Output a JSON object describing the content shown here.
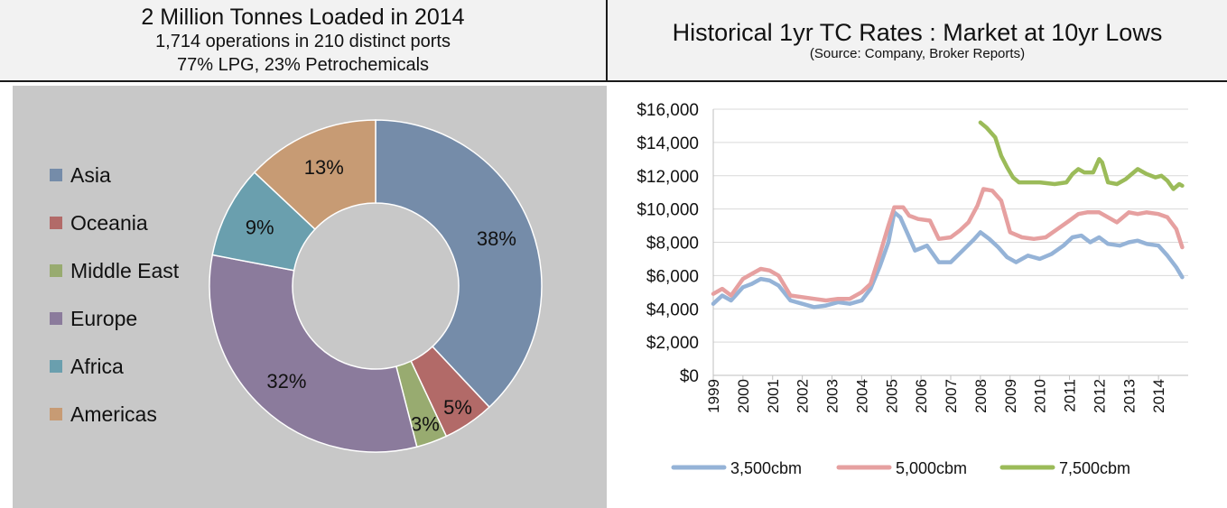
{
  "left_panel": {
    "title": "2 Million Tonnes Loaded in 2014",
    "subtitle1": "1,714 operations in 210 distinct ports",
    "subtitle2": "77% LPG, 23% Petrochemicals"
  },
  "right_panel": {
    "title": "Historical 1yr TC Rates : Market at 10yr Lows",
    "source": "(Source: Company, Broker Reports)"
  },
  "chart_data": [
    {
      "type": "pie",
      "donut": true,
      "legend_position": "left",
      "categories": [
        "Asia",
        "Oceania",
        "Middle East",
        "Europe",
        "Africa",
        "Americas"
      ],
      "values": [
        38,
        5,
        3,
        32,
        9,
        13
      ],
      "labels": [
        "38%",
        "5%",
        "3%",
        "32%",
        "9%",
        "13%"
      ],
      "colors": [
        "#758ca9",
        "#b26a68",
        "#98ab70",
        "#8b7b9c",
        "#6a9fae",
        "#c79b74"
      ]
    },
    {
      "type": "line",
      "ylim": [
        0,
        16000
      ],
      "yticks": [
        "$0",
        "$2,000",
        "$4,000",
        "$6,000",
        "$8,000",
        "$10,000",
        "$12,000",
        "$14,000",
        "$16,000"
      ],
      "xticks": [
        "1999",
        "2000",
        "2001",
        "2002",
        "2003",
        "2004",
        "2005",
        "2006",
        "2007",
        "2008",
        "2009",
        "2010",
        "2011",
        "2012",
        "2013",
        "2014"
      ],
      "grid": true,
      "legend_position": "bottom",
      "series": [
        {
          "name": "3,500cbm",
          "color": "#95b3d7",
          "x": [
            1999.0,
            1999.3,
            1999.6,
            2000.0,
            2000.3,
            2000.6,
            2000.9,
            2001.2,
            2001.6,
            2002.0,
            2002.4,
            2002.8,
            2003.2,
            2003.6,
            2004.0,
            2004.3,
            2004.6,
            2004.9,
            2005.1,
            2005.3,
            2005.5,
            2005.8,
            2006.2,
            2006.6,
            2007.0,
            2007.4,
            2007.8,
            2008.0,
            2008.3,
            2008.6,
            2008.9,
            2009.2,
            2009.6,
            2010.0,
            2010.4,
            2010.8,
            2011.1,
            2011.4,
            2011.7,
            2012.0,
            2012.3,
            2012.7,
            2013.0,
            2013.3,
            2013.6,
            2014.0,
            2014.3,
            2014.6,
            2014.8
          ],
          "values": [
            4300,
            4800,
            4500,
            5300,
            5500,
            5800,
            5700,
            5400,
            4500,
            4300,
            4100,
            4200,
            4400,
            4300,
            4500,
            5200,
            6500,
            8000,
            9800,
            9500,
            8700,
            7500,
            7800,
            6800,
            6800,
            7500,
            8200,
            8600,
            8200,
            7700,
            7100,
            6800,
            7200,
            7000,
            7300,
            7800,
            8300,
            8400,
            8000,
            8300,
            7900,
            7800,
            8000,
            8100,
            7900,
            7800,
            7200,
            6500,
            5900
          ]
        },
        {
          "name": "5,000cbm",
          "color": "#e6a0a0",
          "x": [
            1999.0,
            1999.3,
            1999.6,
            2000.0,
            2000.3,
            2000.6,
            2000.9,
            2001.2,
            2001.6,
            2002.0,
            2002.4,
            2002.8,
            2003.2,
            2003.6,
            2004.0,
            2004.3,
            2004.6,
            2004.9,
            2005.1,
            2005.4,
            2005.6,
            2005.9,
            2006.3,
            2006.6,
            2007.0,
            2007.3,
            2007.6,
            2007.9,
            2008.1,
            2008.4,
            2008.7,
            2009.0,
            2009.4,
            2009.8,
            2010.2,
            2010.6,
            2011.0,
            2011.3,
            2011.6,
            2012.0,
            2012.3,
            2012.6,
            2013.0,
            2013.3,
            2013.6,
            2014.0,
            2014.3,
            2014.6,
            2014.8
          ],
          "values": [
            4900,
            5200,
            4800,
            5800,
            6100,
            6400,
            6300,
            6000,
            4800,
            4700,
            4600,
            4500,
            4600,
            4600,
            5000,
            5500,
            7200,
            9000,
            10100,
            10100,
            9600,
            9400,
            9300,
            8200,
            8300,
            8700,
            9200,
            10200,
            11200,
            11100,
            10500,
            8600,
            8300,
            8200,
            8300,
            8800,
            9300,
            9700,
            9800,
            9800,
            9500,
            9200,
            9800,
            9700,
            9800,
            9700,
            9500,
            8800,
            7700
          ]
        },
        {
          "name": "7,500cbm",
          "color": "#9bbb59",
          "x": [
            2008.0,
            2008.2,
            2008.5,
            2008.7,
            2008.9,
            2009.1,
            2009.3,
            2009.5,
            2010.0,
            2010.5,
            2010.9,
            2011.1,
            2011.3,
            2011.5,
            2011.8,
            2012.0,
            2012.1,
            2012.3,
            2012.6,
            2012.9,
            2013.1,
            2013.3,
            2013.6,
            2013.9,
            2014.1,
            2014.3,
            2014.5,
            2014.7,
            2014.8
          ],
          "values": [
            15200,
            14900,
            14300,
            13200,
            12500,
            11900,
            11600,
            11600,
            11600,
            11500,
            11600,
            12100,
            12400,
            12200,
            12200,
            13000,
            12800,
            11600,
            11500,
            11800,
            12100,
            12400,
            12100,
            11900,
            12000,
            11700,
            11200,
            11500,
            11400
          ]
        }
      ]
    }
  ]
}
